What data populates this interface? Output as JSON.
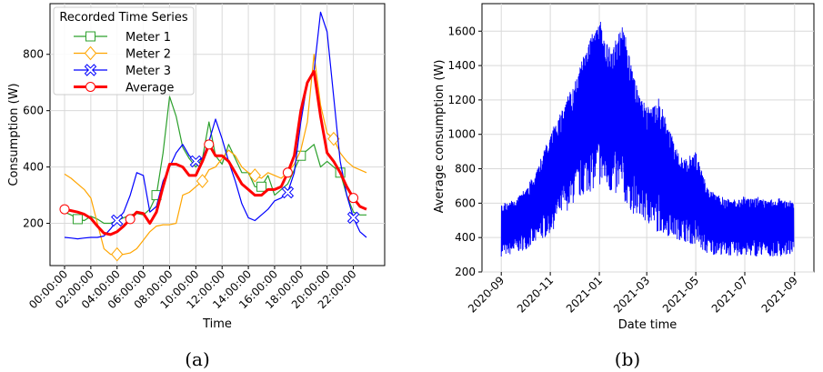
{
  "chart_data": [
    {
      "type": "line",
      "caption": "(a)",
      "xlabel": "Time",
      "ylabel": "Consumption (W)",
      "ylim": [
        50,
        980
      ],
      "yticks": [
        200,
        400,
        600,
        800
      ],
      "xticks": [
        "00:00:00",
        "02:00:00",
        "04:00:00",
        "06:00:00",
        "08:00:00",
        "10:00:00",
        "12:00:00",
        "14:00:00",
        "16:00:00",
        "18:00:00",
        "20:00:00",
        "22:00:00"
      ],
      "legend": {
        "title": "Recorded Time Series",
        "placement": "upper-left"
      },
      "grid": true,
      "x_hours": [
        0,
        0.5,
        1,
        1.5,
        2,
        2.5,
        3,
        3.5,
        4,
        4.5,
        5,
        5.5,
        6,
        6.5,
        7,
        7.5,
        8,
        8.5,
        9,
        9.5,
        10,
        10.5,
        11,
        11.5,
        12,
        12.5,
        13,
        13.5,
        14,
        14.5,
        15,
        15.5,
        16,
        16.5,
        17,
        17.5,
        18,
        18.5,
        19,
        19.5,
        20,
        20.5,
        21,
        21.5,
        22,
        22.5,
        23
      ],
      "series": [
        {
          "name": "Meter 1",
          "color": "#2ca02c",
          "marker": "square",
          "values": [
            240,
            230,
            215,
            210,
            225,
            215,
            200,
            200,
            210,
            220,
            230,
            235,
            230,
            250,
            300,
            450,
            650,
            580,
            470,
            430,
            400,
            430,
            560,
            440,
            410,
            480,
            430,
            380,
            380,
            330,
            330,
            370,
            300,
            320,
            340,
            390,
            440,
            460,
            480,
            400,
            420,
            400,
            380,
            300,
            240,
            230,
            230
          ]
        },
        {
          "name": "Meter 2",
          "color": "#ffa500",
          "marker": "diamond",
          "values": [
            375,
            360,
            340,
            320,
            290,
            200,
            110,
            90,
            90,
            90,
            95,
            110,
            140,
            170,
            190,
            195,
            195,
            200,
            300,
            310,
            330,
            350,
            390,
            400,
            430,
            460,
            440,
            400,
            380,
            370,
            360,
            380,
            370,
            360,
            380,
            410,
            460,
            560,
            800,
            620,
            520,
            500,
            450,
            420,
            400,
            390,
            380
          ]
        },
        {
          "name": "Meter 3",
          "color": "#0000ff",
          "marker": "x",
          "values": [
            150,
            148,
            145,
            148,
            150,
            150,
            155,
            180,
            210,
            240,
            300,
            380,
            370,
            240,
            260,
            350,
            400,
            450,
            480,
            440,
            420,
            430,
            490,
            570,
            500,
            420,
            350,
            270,
            220,
            210,
            230,
            250,
            280,
            290,
            310,
            380,
            560,
            700,
            740,
            950,
            880,
            650,
            420,
            300,
            220,
            170,
            150
          ]
        },
        {
          "name": "Average",
          "color": "#ff0000",
          "marker": "circle",
          "values": [
            250,
            245,
            240,
            232,
            218,
            190,
            165,
            160,
            170,
            190,
            215,
            240,
            235,
            200,
            240,
            330,
            410,
            410,
            400,
            370,
            370,
            420,
            480,
            440,
            440,
            420,
            380,
            340,
            320,
            300,
            300,
            320,
            320,
            330,
            380,
            440,
            600,
            700,
            740,
            580,
            450,
            420,
            380,
            330,
            290,
            260,
            250
          ]
        }
      ]
    },
    {
      "type": "line",
      "caption": "(b)",
      "xlabel": "Date time",
      "ylabel": "Average consumption (W)",
      "ylim": [
        200,
        1760
      ],
      "yticks": [
        200,
        400,
        600,
        800,
        1000,
        1200,
        1400,
        1600
      ],
      "xticks": [
        "2020-09",
        "2020-11",
        "2021-01",
        "2021-03",
        "2021-05",
        "2021-07",
        "2021-09"
      ],
      "xlim": [
        "2020-08-08",
        "2021-09-25"
      ],
      "grid": true,
      "series": [
        {
          "color": "#0000ff",
          "x": [
            "2020-09-01",
            "2020-09-15",
            "2020-10-01",
            "2020-10-15",
            "2020-11-01",
            "2020-11-15",
            "2020-12-01",
            "2020-12-15",
            "2021-01-01",
            "2021-01-15",
            "2021-02-01",
            "2021-02-15",
            "2021-03-01",
            "2021-03-15",
            "2021-04-01",
            "2021-04-15",
            "2021-05-01",
            "2021-05-15",
            "2021-06-01",
            "2021-06-15",
            "2021-07-01",
            "2021-07-15",
            "2021-08-01",
            "2021-08-15",
            "2021-08-31"
          ],
          "min": [
            290,
            300,
            330,
            360,
            420,
            520,
            600,
            650,
            700,
            650,
            600,
            520,
            480,
            430,
            400,
            380,
            350,
            300,
            300,
            290,
            290,
            290,
            290,
            290,
            300
          ],
          "max": [
            600,
            620,
            680,
            800,
            1000,
            1150,
            1300,
            1500,
            1680,
            1500,
            1650,
            1300,
            1150,
            1220,
            1000,
            850,
            900,
            700,
            640,
            620,
            640,
            640,
            620,
            630,
            610
          ]
        }
      ]
    }
  ]
}
